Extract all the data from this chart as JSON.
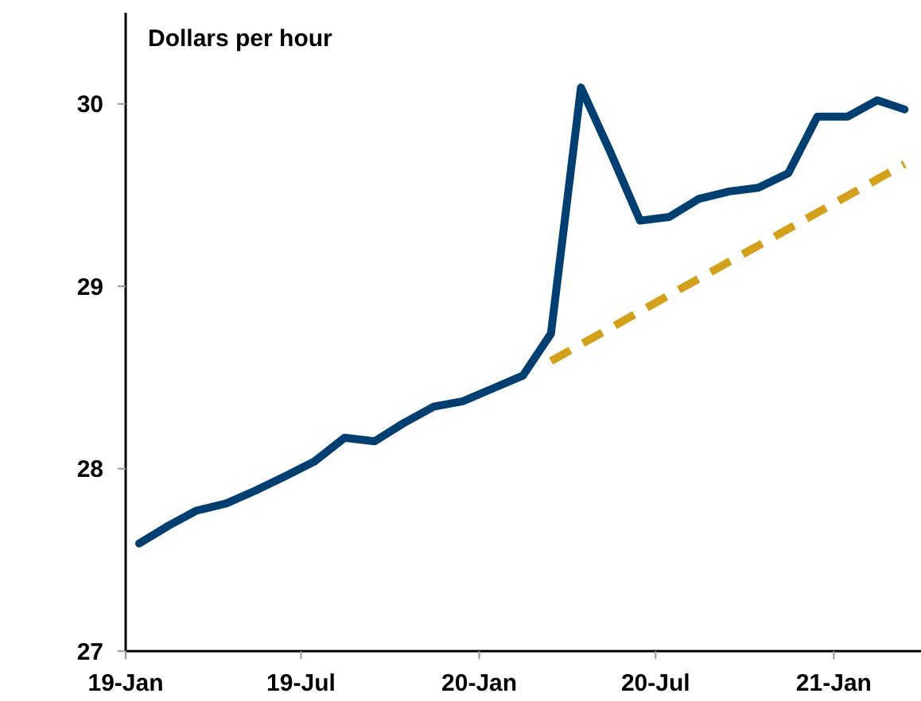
{
  "chart_data": {
    "type": "line",
    "title": "Dollars per hour",
    "x": [
      "2019-01-15",
      "2019-02-15",
      "2019-03-15",
      "2019-04-15",
      "2019-05-15",
      "2019-06-15",
      "2019-07-15",
      "2019-08-15",
      "2019-09-15",
      "2019-10-15",
      "2019-11-15",
      "2019-12-15",
      "2020-01-15",
      "2020-02-15",
      "2020-03-15",
      "2020-04-15",
      "2020-05-15",
      "2020-06-15",
      "2020-07-15",
      "2020-08-15",
      "2020-09-15",
      "2020-10-15",
      "2020-11-15",
      "2020-12-15",
      "2021-01-15",
      "2021-02-15",
      "2021-03-15"
    ],
    "series": [
      {
        "color": "#003f72",
        "line_style": "solid",
        "values": [
          27.59,
          27.69,
          27.77,
          27.81,
          27.88,
          27.96,
          28.04,
          28.17,
          28.15,
          28.25,
          28.34,
          28.37,
          28.44,
          28.51,
          28.74,
          30.09,
          29.74,
          29.36,
          29.38,
          29.48,
          29.52,
          29.54,
          29.62,
          29.93,
          29.93,
          30.02,
          29.97
        ]
      },
      {
        "color": "#d4a017",
        "line_style": "dashed",
        "x": [
          "2020-03-15",
          "2021-03-15"
        ],
        "values": [
          28.59,
          29.67
        ]
      }
    ],
    "xlim": [
      "2019-01-01",
      "2021-04-01"
    ],
    "xticks": [
      {
        "value": "2019-01-01",
        "label": "19-Jan"
      },
      {
        "value": "2019-07-01",
        "label": "19-Jul"
      },
      {
        "value": "2020-01-01",
        "label": "20-Jan"
      },
      {
        "value": "2020-07-01",
        "label": "20-Jul"
      },
      {
        "value": "2021-01-01",
        "label": "21-Jan"
      }
    ],
    "ylim": [
      27,
      30.5
    ],
    "yticks": [
      27,
      28,
      29,
      30
    ]
  }
}
